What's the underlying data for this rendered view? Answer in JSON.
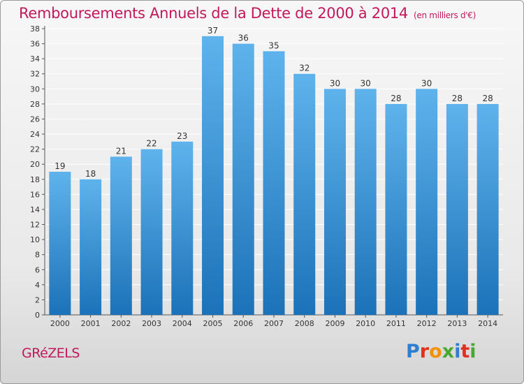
{
  "title": "Remboursements Annuels de la Dette de 2000 à 2014",
  "unit": "(en milliers d'€)",
  "commune": "GRéZELS",
  "brand": {
    "letters": [
      "P",
      "r",
      "o",
      "x",
      "i",
      "t",
      "i"
    ],
    "colors": [
      "#2e7fd1",
      "#e0301e",
      "#f29200",
      "#49a832",
      "#2e7fd1",
      "#e0301e",
      "#49a832"
    ]
  },
  "colors": {
    "title": "#c2185b",
    "bar_top": "#5fb3ec",
    "bar_bottom": "#1c72b8",
    "grid": "#ffffff"
  },
  "chart_data": {
    "type": "bar",
    "categories": [
      "2000",
      "2001",
      "2002",
      "2003",
      "2004",
      "2005",
      "2006",
      "2007",
      "2008",
      "2009",
      "2010",
      "2011",
      "2012",
      "2013",
      "2014"
    ],
    "values": [
      19,
      18,
      21,
      22,
      23,
      37,
      36,
      35,
      32,
      30,
      30,
      28,
      30,
      28,
      28
    ],
    "title": "Remboursements Annuels de la Dette de 2000 à 2014",
    "xlabel": "",
    "ylabel": "",
    "ylim": [
      0,
      38
    ],
    "yticks": [
      0,
      2,
      4,
      6,
      8,
      10,
      12,
      14,
      16,
      18,
      20,
      22,
      24,
      26,
      28,
      30,
      32,
      34,
      36,
      38
    ],
    "grid": true,
    "data_labels": true
  }
}
